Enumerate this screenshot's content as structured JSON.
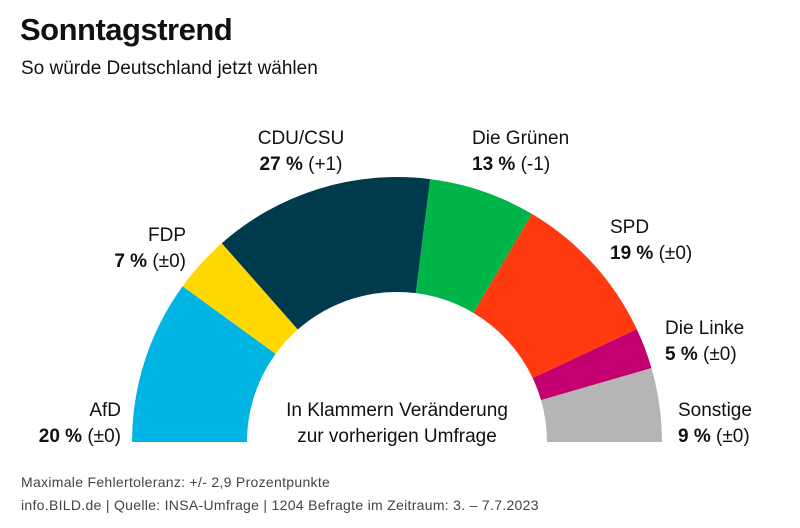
{
  "title": "Sonntagstrend",
  "subtitle": "So würde Deutschland jetzt wählen",
  "center_note": [
    "In Klammern Veränderung",
    "zur vorherigen Umfrage"
  ],
  "footer": {
    "line1": "Maximale Fehlertoleranz: +/- 2,9 Prozentpunkte",
    "line2": "info.BILD.de | Quelle: INSA-Umfrage | 1204 Befragte im Zeitraum: 3. – 7.7.2023"
  },
  "chart_data": {
    "type": "pie",
    "variant": "half-donut",
    "unit": "%",
    "slices": [
      {
        "party": "AfD",
        "value": 20,
        "value_label": "20 %",
        "change": "(±0)",
        "color": "#00b4e4"
      },
      {
        "party": "FDP",
        "value": 7,
        "value_label": "7 %",
        "change": "(±0)",
        "color": "#ffd800"
      },
      {
        "party": "CDU/CSU",
        "value": 27,
        "value_label": "27 %",
        "change": "(+1)",
        "color": "#003a4d"
      },
      {
        "party": "Die Grünen",
        "value": 13,
        "value_label": "13 %",
        "change": "(-1)",
        "color": "#00b548"
      },
      {
        "party": "SPD",
        "value": 19,
        "value_label": "19 %",
        "change": "(±0)",
        "color": "#ff3a10"
      },
      {
        "party": "Die Linke",
        "value": 5,
        "value_label": "5 %",
        "change": "(±0)",
        "color": "#c40070"
      },
      {
        "party": "Sonstige",
        "value": 9,
        "value_label": "9 %",
        "change": "(±0)",
        "color": "#b5b5b5"
      }
    ]
  }
}
